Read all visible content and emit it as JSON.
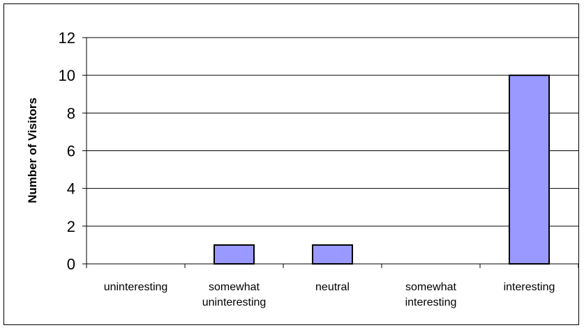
{
  "chart_data": {
    "type": "bar",
    "categories": [
      [
        "uninteresting"
      ],
      [
        "somewhat",
        "uninteresting"
      ],
      [
        "neutral"
      ],
      [
        "somewhat",
        "interesting"
      ],
      [
        "interesting"
      ]
    ],
    "values": [
      0,
      1,
      1,
      0,
      10
    ],
    "title": "",
    "xlabel": "",
    "ylabel": "Number of Visitors",
    "ylim": [
      0,
      12
    ],
    "yticks": [
      0,
      2,
      4,
      6,
      8,
      10,
      12
    ],
    "grid": true,
    "legend": "none",
    "bar_color": "#9999ff",
    "bar_edge_color": "#000000"
  }
}
